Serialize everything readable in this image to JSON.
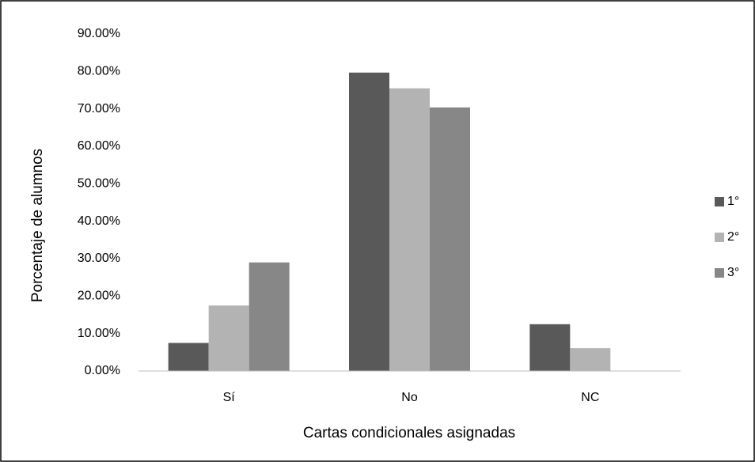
{
  "chart_data": {
    "type": "bar",
    "categories": [
      "Sí",
      "No",
      "NC"
    ],
    "series": [
      {
        "name": "1°",
        "color": "#595959",
        "values": [
          7.5,
          79.7,
          12.5
        ]
      },
      {
        "name": "2°",
        "color": "#b3b3b3",
        "values": [
          17.5,
          75.5,
          6.1
        ]
      },
      {
        "name": "3°",
        "color": "#878787",
        "values": [
          29.0,
          70.4,
          0
        ]
      }
    ],
    "x_label": "Cartas condicionales asignadas",
    "y_label": "Porcentaje de alumnos",
    "ylim": [
      0,
      90
    ],
    "yticks": [
      {
        "value": 0,
        "label": "0.00%"
      },
      {
        "value": 10,
        "label": "10.00%"
      },
      {
        "value": 20,
        "label": "20.00%"
      },
      {
        "value": 30,
        "label": "30.00%"
      },
      {
        "value": 40,
        "label": "40.00%"
      },
      {
        "value": 50,
        "label": "50.00%"
      },
      {
        "value": 60,
        "label": "60.00%"
      },
      {
        "value": 70,
        "label": "70.00%"
      },
      {
        "value": 80,
        "label": "80.00%"
      },
      {
        "value": 90,
        "label": "90.00%"
      }
    ],
    "grid": false,
    "legend": "right"
  }
}
